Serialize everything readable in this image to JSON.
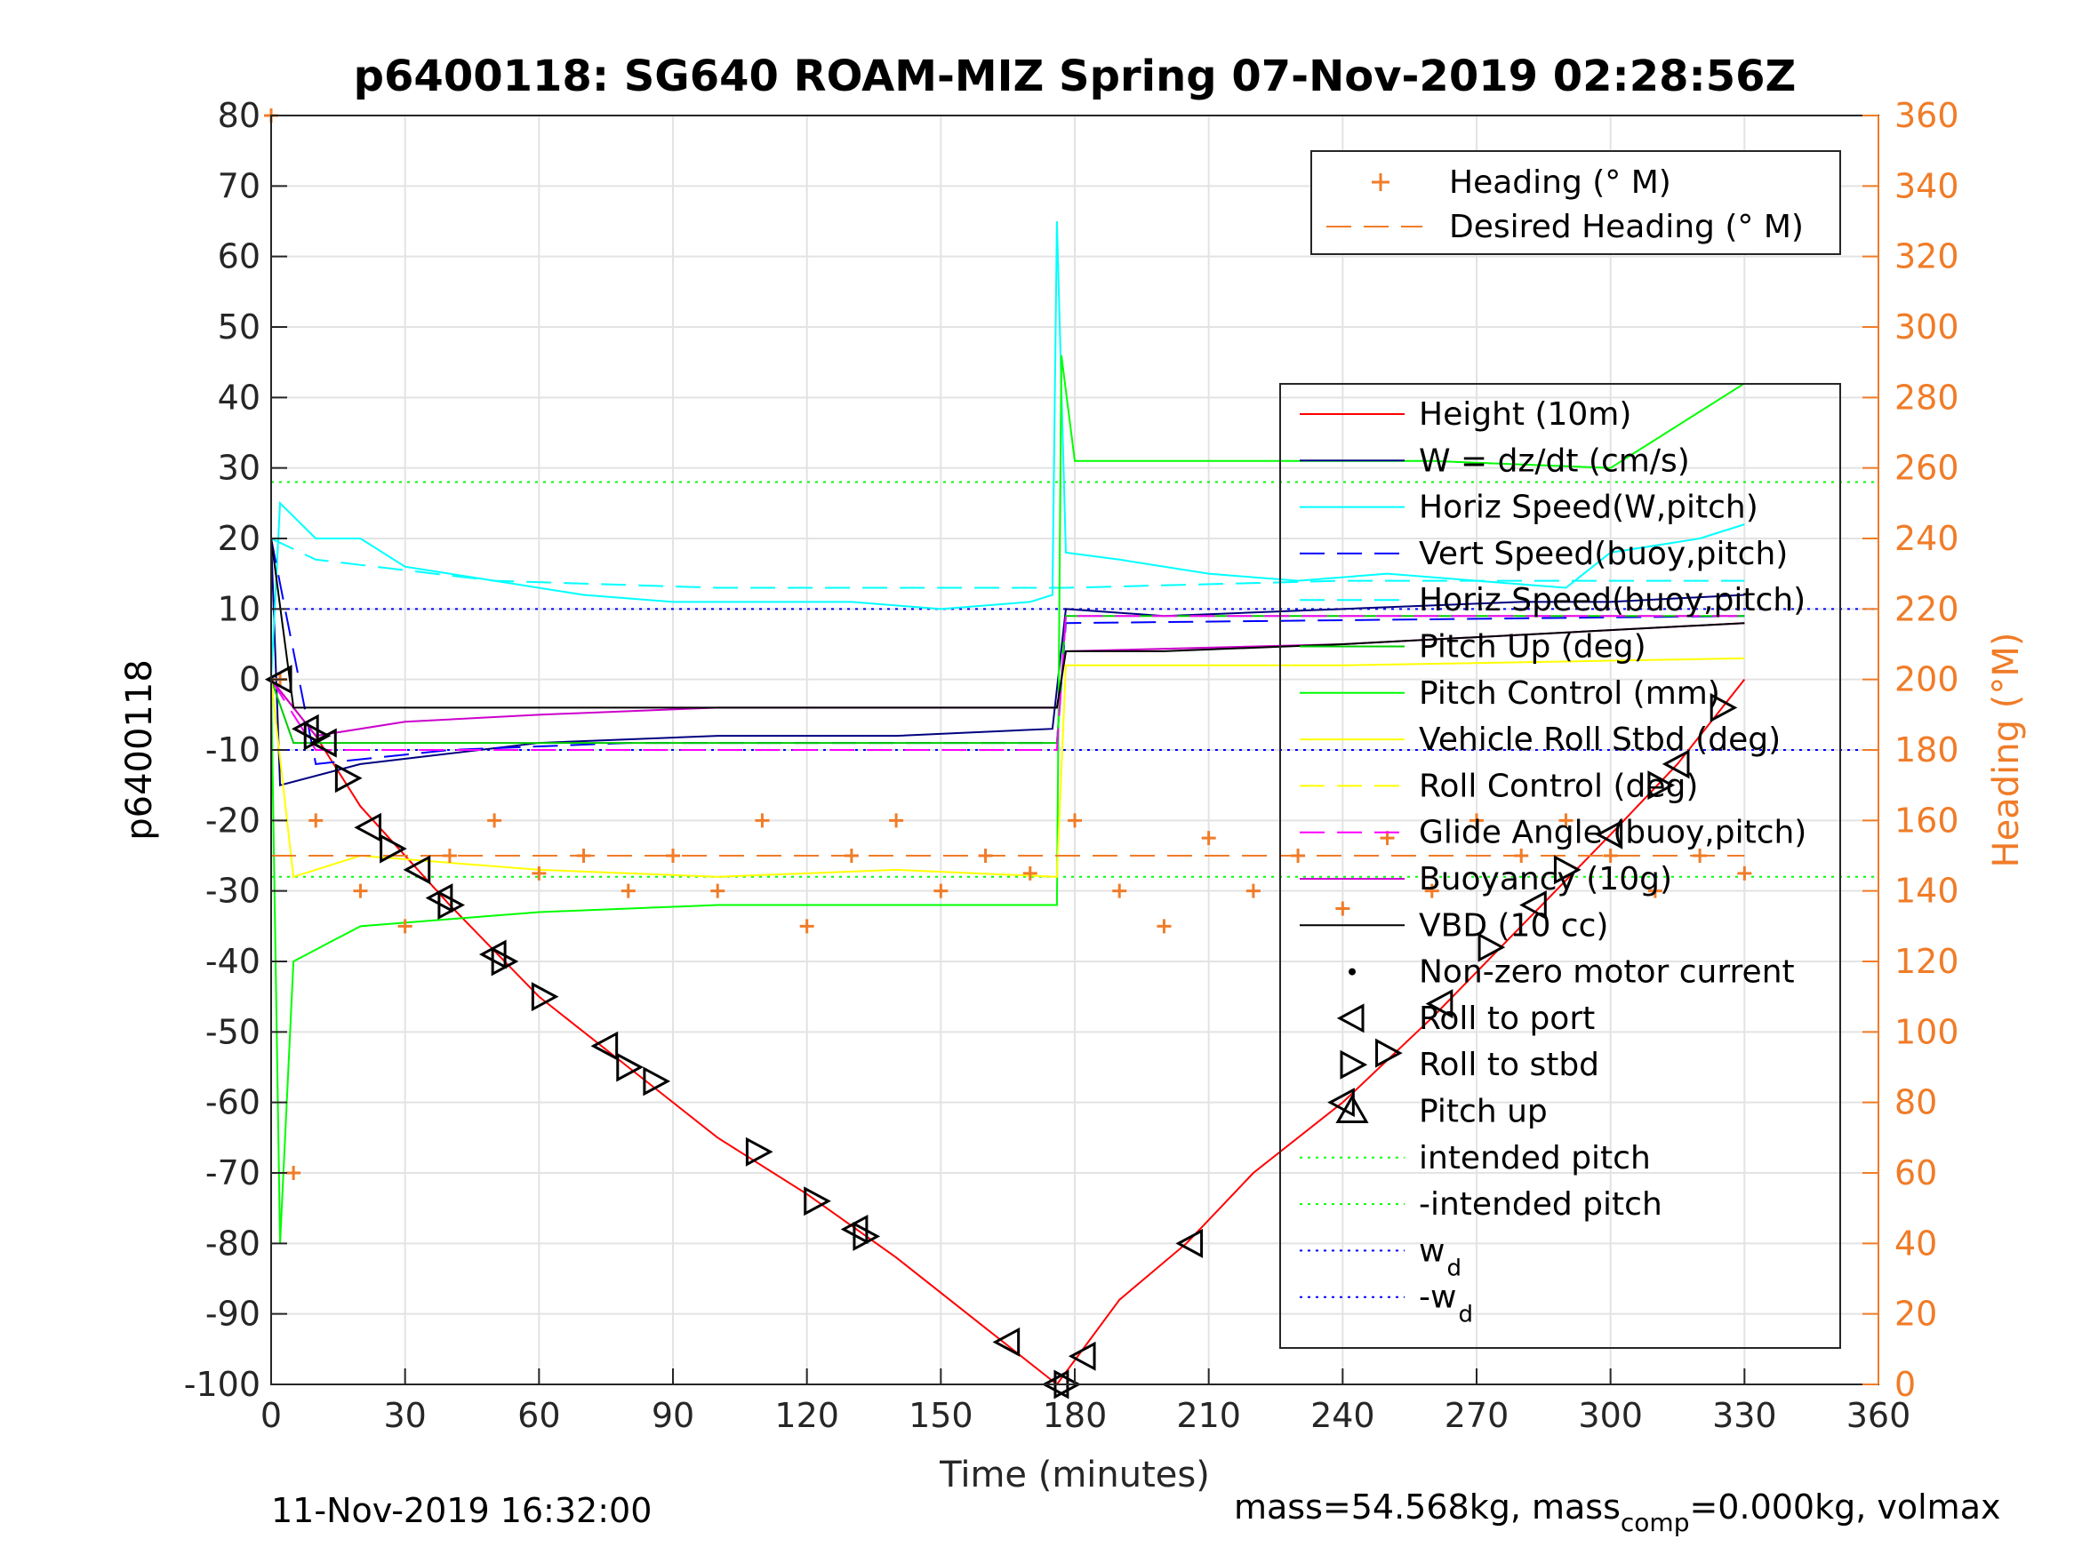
{
  "chart_data": {
    "type": "line",
    "title": "p6400118: SG640 ROAM-MIZ Spring 07-Nov-2019 02:28:56Z",
    "xlabel": "Time (minutes)",
    "ylabel_left": "p6400118",
    "ylabel_right": "Heading (°M)",
    "xlim": [
      0,
      360
    ],
    "ylim_left": [
      -100,
      80
    ],
    "ylim_right": [
      0,
      360
    ],
    "x_ticks": [
      0,
      30,
      60,
      90,
      120,
      150,
      180,
      210,
      240,
      270,
      300,
      330,
      360
    ],
    "y_ticks_left": [
      80,
      70,
      60,
      50,
      40,
      30,
      20,
      10,
      0,
      -10,
      -20,
      -30,
      -40,
      -50,
      -60,
      -70,
      -80,
      -90,
      -100
    ],
    "y_ticks_right": [
      360,
      340,
      320,
      300,
      280,
      260,
      240,
      220,
      200,
      180,
      160,
      140,
      120,
      100,
      80,
      60,
      40,
      20,
      0
    ],
    "grid": true,
    "colors": {
      "heading": "#f07c28",
      "height": "#ff0000",
      "w": "#000080",
      "horiz_speed": "#00ffff",
      "vert_speed": "#0000ff",
      "pitch_up": "#00cc00",
      "pitch_control": "#00ff00",
      "roll": "#ffff00",
      "glide": "#ff00ff",
      "buoyancy": "#cc00cc",
      "vbd": "#000000"
    },
    "legend_heading": [
      "Heading (° M)",
      "Desired Heading (° M)"
    ],
    "legend_main": [
      "Height (10m)",
      "W = dz/dt (cm/s)",
      "Horiz Speed(W,pitch)",
      "Vert Speed(buoy,pitch)",
      "Horiz Speed(buoy,pitch)",
      "Pitch Up (deg)",
      "Pitch Control (mm)",
      "Vehicle Roll Stbd (deg)",
      "Roll Control (deg)",
      "Glide Angle (buoy,pitch)",
      "Buoyancy (10g)",
      "VBD (10 cc)",
      "Non-zero motor current",
      "Roll to port",
      "Roll to stbd",
      "Pitch up",
      "intended pitch",
      "-intended pitch",
      "w",
      "-w"
    ],
    "legend_wd_sub": "d",
    "series": [
      {
        "name": "Height (10m)",
        "x": [
          0,
          10,
          20,
          40,
          60,
          80,
          100,
          120,
          140,
          160,
          176,
          190,
          205,
          220,
          240,
          260,
          280,
          300,
          315,
          330
        ],
        "y": [
          0,
          -8,
          -18,
          -32,
          -45,
          -55,
          -65,
          -73,
          -82,
          -92,
          -100,
          -88,
          -80,
          -70,
          -60,
          -48,
          -35,
          -22,
          -12,
          0
        ]
      },
      {
        "name": "W = dz/dt (cm/s)",
        "x": [
          0,
          2,
          20,
          60,
          100,
          140,
          175,
          178,
          200,
          240,
          280,
          300,
          330
        ],
        "y": [
          20,
          -15,
          -12,
          -9,
          -8,
          -8,
          -7,
          10,
          9,
          10,
          11,
          11,
          12
        ]
      },
      {
        "name": "Horiz Speed(W,pitch)",
        "x": [
          0,
          2,
          10,
          20,
          30,
          50,
          70,
          90,
          110,
          130,
          150,
          170,
          175,
          176,
          178,
          190,
          210,
          230,
          250,
          270,
          290,
          300,
          320,
          330
        ],
        "y": [
          0,
          25,
          20,
          20,
          16,
          14,
          12,
          11,
          11,
          11,
          10,
          11,
          12,
          65,
          18,
          17,
          15,
          14,
          15,
          14,
          13,
          18,
          20,
          22
        ]
      },
      {
        "name": "Vert Speed(buoy,pitch)",
        "x": [
          0,
          10,
          40,
          80,
          120,
          176,
          178,
          330
        ],
        "y": [
          20,
          -12,
          -10,
          -9,
          -9,
          -9,
          8,
          9
        ]
      },
      {
        "name": "Horiz Speed(buoy,pitch)",
        "x": [
          0,
          10,
          50,
          100,
          176,
          178,
          240,
          330
        ],
        "y": [
          20,
          17,
          14,
          13,
          13,
          13,
          14,
          14
        ]
      },
      {
        "name": "Pitch Up (deg)",
        "x": [
          0,
          5,
          176,
          178,
          330
        ],
        "y": [
          0,
          -9,
          -9,
          9,
          9
        ]
      },
      {
        "name": "Pitch Control (mm)",
        "x": [
          0,
          2,
          5,
          20,
          60,
          100,
          140,
          176,
          177,
          180,
          220,
          260,
          300,
          330
        ],
        "y": [
          0,
          -80,
          -40,
          -35,
          -33,
          -32,
          -32,
          -32,
          46,
          31,
          31,
          31,
          30,
          42
        ]
      },
      {
        "name": "Vehicle Roll Stbd (deg)",
        "x": [
          0,
          5,
          20,
          60,
          100,
          140,
          176,
          178,
          240,
          330
        ],
        "y": [
          0,
          -28,
          -25,
          -27,
          -28,
          -27,
          -28,
          2,
          2,
          3
        ]
      },
      {
        "name": "Glide Angle (buoy,pitch)",
        "x": [
          0,
          10,
          176,
          178,
          330
        ],
        "y": [
          0,
          -10,
          -10,
          9,
          9
        ]
      },
      {
        "name": "Buoyancy (10g)",
        "x": [
          0,
          10,
          30,
          60,
          100,
          176,
          178,
          240,
          300,
          330
        ],
        "y": [
          0,
          -8,
          -6,
          -5,
          -4,
          -4,
          4,
          5,
          7,
          8
        ]
      },
      {
        "name": "VBD (10 cc)",
        "x": [
          0,
          5,
          176,
          178,
          200,
          240,
          300,
          330
        ],
        "y": [
          20,
          -4,
          -4,
          4,
          4,
          5,
          7,
          8
        ]
      },
      {
        "name": "Heading (° M)",
        "x": [
          0,
          2,
          5,
          10,
          20,
          30,
          40,
          50,
          60,
          70,
          80,
          90,
          100,
          110,
          120,
          130,
          140,
          150,
          160,
          170,
          180,
          190,
          200,
          210,
          220,
          230,
          240,
          250,
          260,
          270,
          280,
          290,
          300,
          310,
          320,
          330
        ],
        "y": [
          360,
          200,
          60,
          160,
          140,
          130,
          150,
          160,
          145,
          150,
          140,
          150,
          140,
          160,
          130,
          150,
          160,
          140,
          150,
          145,
          160,
          140,
          130,
          155,
          140,
          150,
          135,
          155,
          140,
          160,
          150,
          160,
          150,
          140,
          150,
          145
        ]
      },
      {
        "name": "Desired Heading (° M)",
        "x": [
          0,
          330
        ],
        "y": [
          150,
          150
        ]
      }
    ],
    "intended_pitch": 28,
    "w_d": 10,
    "roll_to_port": {
      "x": [
        2,
        8,
        12,
        22,
        33,
        38,
        50,
        75,
        131,
        165,
        176,
        182,
        206,
        240,
        262,
        283,
        300,
        315
      ],
      "y": [
        0,
        -7,
        -9,
        -21,
        -27,
        -31,
        -39,
        -52,
        -78,
        -94,
        -100,
        -96,
        -80,
        -60,
        -46,
        -32,
        -22,
        -12
      ]
    },
    "roll_to_stbd": {
      "x": [
        10,
        17,
        27,
        40,
        52,
        61,
        80,
        86,
        109,
        122,
        133,
        178,
        250,
        273,
        290,
        311,
        325
      ],
      "y": [
        -8,
        -14,
        -24,
        -32,
        -40,
        -45,
        -55,
        -57,
        -67,
        -74,
        -79,
        -100,
        -53,
        -38,
        -27,
        -15,
        -4
      ]
    },
    "footer_date": "11-Nov-2019 16:32:00",
    "footer_mass": "mass=54.568kg, mass",
    "footer_mass_sub": "comp",
    "footer_mass_tail": "=0.000kg, volmax"
  }
}
